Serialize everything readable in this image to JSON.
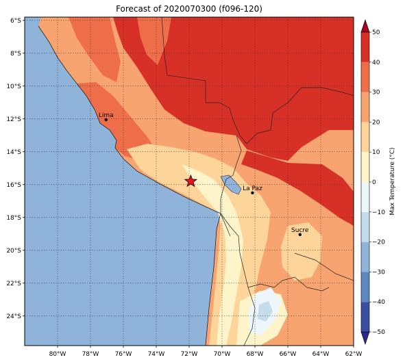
{
  "title": "Forecast of 2020070300 (f096-120)",
  "map": {
    "lon_range": [
      -82,
      -62
    ],
    "lat_range": [
      -25.8,
      -5.8
    ],
    "lon_ticks": [
      "80°W",
      "78°W",
      "76°W",
      "74°W",
      "72°W",
      "70°W",
      "68°W",
      "66°W",
      "64°W",
      "62°W"
    ],
    "lat_ticks": [
      "6°S",
      "8°S",
      "10°S",
      "12°S",
      "14°S",
      "16°S",
      "18°S",
      "20°S",
      "22°S",
      "24°S"
    ],
    "ocean_color": "#8fb3d9",
    "gridlines": true,
    "cities": [
      {
        "name": "Lima",
        "lon": -77.05,
        "lat": -12.05
      },
      {
        "name": "La Paz",
        "lon": -68.15,
        "lat": -16.5
      },
      {
        "name": "Sucre",
        "lon": -65.26,
        "lat": -19.04
      }
    ],
    "marker": {
      "symbol": "star",
      "lon": -71.9,
      "lat": -15.8,
      "color": "#e8141b"
    }
  },
  "colorbar": {
    "label": "Max Temperature (°C)",
    "ticks": [
      "50",
      "40",
      "30",
      "20",
      "10",
      "0",
      "−10",
      "−20",
      "−30",
      "−40",
      "−50"
    ],
    "colors": [
      "#2a2a8a",
      "#3b4fa0",
      "#5c88c0",
      "#8fb3d9",
      "#c5dcea",
      "#edf6fa",
      "#fdf5c9",
      "#fdd49a",
      "#f8a471",
      "#ef6e4a",
      "#d73027",
      "#a50026"
    ]
  }
}
